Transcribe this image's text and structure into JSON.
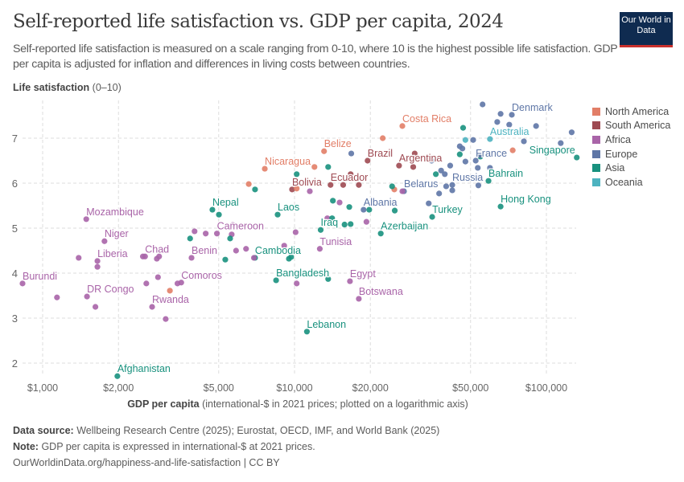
{
  "header": {
    "title": "Self-reported life satisfaction vs. GDP per capita, 2024",
    "subtitle": "Self-reported life satisfaction is measured on a scale ranging from 0-10, where 10 is the highest possible life satisfaction. GDP per capita is adjusted for inflation and differences in living costs between countries.",
    "logo": "Our World in Data"
  },
  "footer": {
    "source_label": "Data source:",
    "source": "Wellbeing Research Centre (2025); Eurostat, OECD, IMF, and World Bank (2025)",
    "note_label": "Note:",
    "note": "GDP per capita is expressed in international-$ at 2021 prices.",
    "url": "OurWorldinData.org/happiness-and-life-satisfaction | CC BY"
  },
  "chart_data": {
    "type": "scatter",
    "title": "Self-reported life satisfaction vs. GDP per capita, 2024",
    "ylabel_bold": "Life satisfaction",
    "ylabel_rest": "(0–10)",
    "xlabel_bold": "GDP per capita",
    "xlabel_rest": "(international-$ in 2021 prices; plotted on a logarithmic axis)",
    "x_scale": "log",
    "xlim": [
      790,
      135000
    ],
    "ylim": [
      1.7,
      7.8
    ],
    "grid": true,
    "legend_position": "right",
    "x_ticks": [
      {
        "v": 1000,
        "label": "$1,000"
      },
      {
        "v": 2000,
        "label": "$2,000"
      },
      {
        "v": 5000,
        "label": "$5,000"
      },
      {
        "v": 10000,
        "label": "$10,000"
      },
      {
        "v": 20000,
        "label": "$20,000"
      },
      {
        "v": 50000,
        "label": "$50,000"
      },
      {
        "v": 100000,
        "label": "$100,000"
      }
    ],
    "y_ticks": [
      {
        "v": 2,
        "label": "2"
      },
      {
        "v": 3,
        "label": "3"
      },
      {
        "v": 4,
        "label": "4"
      },
      {
        "v": 5,
        "label": "5"
      },
      {
        "v": 6,
        "label": "6"
      },
      {
        "v": 7,
        "label": "7"
      }
    ],
    "regions": [
      {
        "name": "North America",
        "color": "#E27E67"
      },
      {
        "name": "South America",
        "color": "#9E4A52"
      },
      {
        "name": "Africa",
        "color": "#A964A8"
      },
      {
        "name": "Europe",
        "color": "#5E76A6"
      },
      {
        "name": "Asia",
        "color": "#18917E"
      },
      {
        "name": "Oceania",
        "color": "#4DB3C0"
      }
    ],
    "points": [
      [
        832,
        3.77,
        2,
        "Burundi"
      ],
      [
        1140,
        3.46,
        2,
        ""
      ],
      [
        1490,
        5.2,
        2,
        "Mozambique"
      ],
      [
        1760,
        4.71,
        2,
        "Niger"
      ],
      [
        1650,
        4.27,
        2,
        "Liberia"
      ],
      [
        1650,
        4.14,
        2,
        ""
      ],
      [
        1500,
        3.48,
        2,
        "DR Congo"
      ],
      [
        1620,
        3.25,
        2,
        ""
      ],
      [
        1390,
        4.34,
        2,
        ""
      ],
      [
        1980,
        1.71,
        4,
        "Afghanistan"
      ],
      [
        2550,
        4.37,
        2,
        "Chad"
      ],
      [
        2500,
        4.37,
        2,
        ""
      ],
      [
        2840,
        4.32,
        2,
        ""
      ],
      [
        2900,
        4.37,
        2,
        ""
      ],
      [
        2580,
        3.77,
        2,
        ""
      ],
      [
        2870,
        3.91,
        2,
        ""
      ],
      [
        2720,
        3.25,
        2,
        "Rwanda"
      ],
      [
        3080,
        2.98,
        2,
        ""
      ],
      [
        3200,
        3.61,
        0,
        ""
      ],
      [
        3550,
        3.79,
        2,
        "Comoros"
      ],
      [
        3430,
        3.77,
        2,
        ""
      ],
      [
        3900,
        4.34,
        2,
        "Benin"
      ],
      [
        4010,
        4.93,
        2,
        ""
      ],
      [
        4440,
        4.88,
        2,
        ""
      ],
      [
        4920,
        4.88,
        2,
        "Cameroon"
      ],
      [
        5630,
        4.86,
        2,
        ""
      ],
      [
        5680,
        5.07,
        2,
        ""
      ],
      [
        4720,
        5.41,
        4,
        "Nepal"
      ],
      [
        5010,
        5.3,
        4,
        ""
      ],
      [
        3850,
        4.77,
        4,
        ""
      ],
      [
        5550,
        4.77,
        4,
        ""
      ],
      [
        5310,
        4.3,
        4,
        ""
      ],
      [
        5860,
        4.5,
        2,
        ""
      ],
      [
        6420,
        4.54,
        2,
        ""
      ],
      [
        6970,
        4.34,
        4,
        "Cambodia"
      ],
      [
        6900,
        4.34,
        2,
        ""
      ],
      [
        7620,
        6.32,
        0,
        "Nicaragua"
      ],
      [
        6580,
        5.98,
        0,
        ""
      ],
      [
        6970,
        5.86,
        4,
        ""
      ],
      [
        8570,
        5.3,
        4,
        "Laos"
      ],
      [
        8450,
        3.84,
        4,
        "Bangladesh"
      ],
      [
        13600,
        3.87,
        4,
        ""
      ],
      [
        9100,
        4.61,
        2,
        ""
      ],
      [
        9500,
        4.32,
        4,
        ""
      ],
      [
        9700,
        4.36,
        4,
        ""
      ],
      [
        10100,
        4.91,
        2,
        ""
      ],
      [
        10200,
        3.77,
        2,
        ""
      ],
      [
        9780,
        5.86,
        1,
        "Bolivia"
      ],
      [
        10200,
        5.88,
        0,
        ""
      ],
      [
        10200,
        6.2,
        4,
        ""
      ],
      [
        12000,
        6.36,
        0,
        ""
      ],
      [
        11500,
        5.82,
        2,
        ""
      ],
      [
        13100,
        6.71,
        0,
        "Belize"
      ],
      [
        13600,
        6.36,
        4,
        ""
      ],
      [
        13900,
        5.96,
        1,
        "Ecuador"
      ],
      [
        15600,
        5.96,
        1,
        ""
      ],
      [
        14200,
        5.61,
        4,
        ""
      ],
      [
        15100,
        5.57,
        2,
        ""
      ],
      [
        12700,
        4.96,
        4,
        "Iraq"
      ],
      [
        13500,
        5.22,
        2,
        ""
      ],
      [
        14100,
        5.22,
        4,
        ""
      ],
      [
        15800,
        5.08,
        4,
        ""
      ],
      [
        12600,
        4.54,
        2,
        "Tunisia"
      ],
      [
        16600,
        3.82,
        2,
        "Egypt"
      ],
      [
        18000,
        3.43,
        2,
        "Botswana"
      ],
      [
        11200,
        2.7,
        4,
        "Lebanon"
      ],
      [
        26800,
        7.27,
        0,
        "Costa Rica"
      ],
      [
        22400,
        7.0,
        0,
        ""
      ],
      [
        19500,
        6.5,
        1,
        "Brazil"
      ],
      [
        16700,
        6.2,
        1,
        ""
      ],
      [
        18000,
        5.96,
        1,
        ""
      ],
      [
        16800,
        6.66,
        3,
        ""
      ],
      [
        30000,
        6.66,
        1,
        ""
      ],
      [
        26000,
        6.39,
        1,
        "Argentina"
      ],
      [
        29600,
        6.36,
        1,
        ""
      ],
      [
        27200,
        5.82,
        3,
        "Belarus"
      ],
      [
        26800,
        5.82,
        2,
        ""
      ],
      [
        24900,
        5.86,
        0,
        ""
      ],
      [
        24400,
        5.93,
        4,
        ""
      ],
      [
        18800,
        5.41,
        3,
        "Albania"
      ],
      [
        19800,
        5.41,
        4,
        ""
      ],
      [
        16500,
        5.47,
        4,
        ""
      ],
      [
        16700,
        5.09,
        4,
        ""
      ],
      [
        19300,
        5.14,
        2,
        ""
      ],
      [
        25000,
        5.39,
        4,
        ""
      ],
      [
        22000,
        4.88,
        4,
        "Azerbaijan"
      ],
      [
        35200,
        5.25,
        4,
        "Turkey"
      ],
      [
        34100,
        5.55,
        3,
        ""
      ],
      [
        37500,
        5.77,
        3,
        ""
      ],
      [
        36400,
        6.2,
        4,
        ""
      ],
      [
        39500,
        6.2,
        3,
        ""
      ],
      [
        38200,
        6.28,
        3,
        ""
      ],
      [
        41500,
        6.39,
        3,
        ""
      ],
      [
        42300,
        5.96,
        3,
        "Russia"
      ],
      [
        40000,
        5.93,
        3,
        ""
      ],
      [
        42300,
        5.84,
        3,
        ""
      ],
      [
        35000,
        6.5,
        3,
        ""
      ],
      [
        65800,
        5.48,
        4,
        "Hong Kong"
      ],
      [
        58900,
        6.05,
        4,
        "Bahrain"
      ],
      [
        53700,
        5.95,
        3,
        ""
      ],
      [
        53400,
        6.34,
        3,
        ""
      ],
      [
        132000,
        6.57,
        4,
        "Singapore"
      ],
      [
        59700,
        6.98,
        5,
        "Australia"
      ],
      [
        52400,
        6.5,
        3,
        "France"
      ],
      [
        47700,
        6.48,
        3,
        ""
      ],
      [
        54700,
        6.59,
        4,
        ""
      ],
      [
        73500,
        6.73,
        0,
        ""
      ],
      [
        51200,
        6.96,
        3,
        ""
      ],
      [
        47700,
        6.96,
        5,
        ""
      ],
      [
        46700,
        7.23,
        4,
        ""
      ],
      [
        45300,
        6.82,
        3,
        ""
      ],
      [
        46400,
        6.77,
        3,
        ""
      ],
      [
        45300,
        6.64,
        4,
        ""
      ],
      [
        55800,
        7.75,
        3,
        ""
      ],
      [
        65800,
        7.54,
        3,
        ""
      ],
      [
        72900,
        7.52,
        3,
        "Denmark"
      ],
      [
        63800,
        7.36,
        3,
        ""
      ],
      [
        71200,
        7.3,
        3,
        ""
      ],
      [
        91000,
        7.27,
        3,
        ""
      ],
      [
        81400,
        6.93,
        3,
        ""
      ],
      [
        114000,
        6.89,
        3,
        ""
      ],
      [
        126000,
        7.13,
        3,
        ""
      ],
      [
        59700,
        6.34,
        3,
        ""
      ],
      [
        54400,
        6.62,
        3,
        ""
      ]
    ]
  }
}
